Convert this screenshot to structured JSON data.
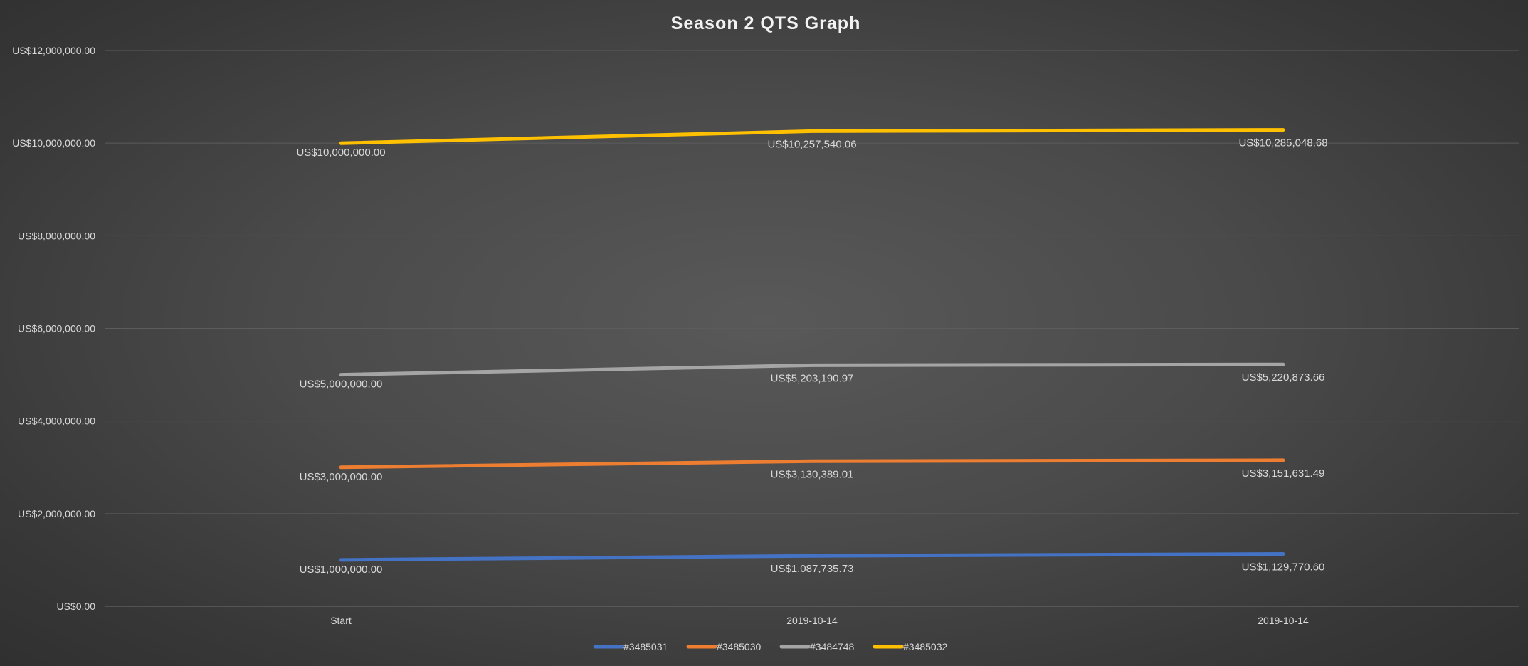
{
  "chart_data": {
    "type": "line",
    "title": "Season 2 QTS Graph",
    "xlabel": "",
    "ylabel": "",
    "categories": [
      "Start",
      "2019-10-14",
      "2019-10-14"
    ],
    "ylim": [
      0,
      12000000
    ],
    "yticks": [
      0,
      2000000,
      4000000,
      6000000,
      8000000,
      10000000,
      12000000
    ],
    "ytick_labels": [
      "US$0.00",
      "US$2,000,000.00",
      "US$4,000,000.00",
      "US$6,000,000.00",
      "US$8,000,000.00",
      "US$10,000,000.00",
      "US$12,000,000.00"
    ],
    "grid": true,
    "legend_position": "bottom",
    "series": [
      {
        "name": "#3485031",
        "color": "#4472c4",
        "values": [
          1000000.0,
          1087735.73,
          1129770.6
        ],
        "labels": [
          "US$1,000,000.00",
          "US$1,087,735.73",
          "US$1,129,770.60"
        ]
      },
      {
        "name": "#3485030",
        "color": "#ed7d31",
        "values": [
          3000000.0,
          3130389.01,
          3151631.49
        ],
        "labels": [
          "US$3,000,000.00",
          "US$3,130,389.01",
          "US$3,151,631.49"
        ]
      },
      {
        "name": "#3484748",
        "color": "#a5a5a5",
        "values": [
          5000000.0,
          5203190.97,
          5220873.66
        ],
        "labels": [
          "US$5,000,000.00",
          "US$5,203,190.97",
          "US$5,220,873.66"
        ]
      },
      {
        "name": "#3485032",
        "color": "#ffc000",
        "values": [
          10000000.0,
          10257540.06,
          10285048.68
        ],
        "labels": [
          "US$10,000,000.00",
          "US$10,257,540.06",
          "US$10,285,048.68"
        ]
      }
    ]
  }
}
